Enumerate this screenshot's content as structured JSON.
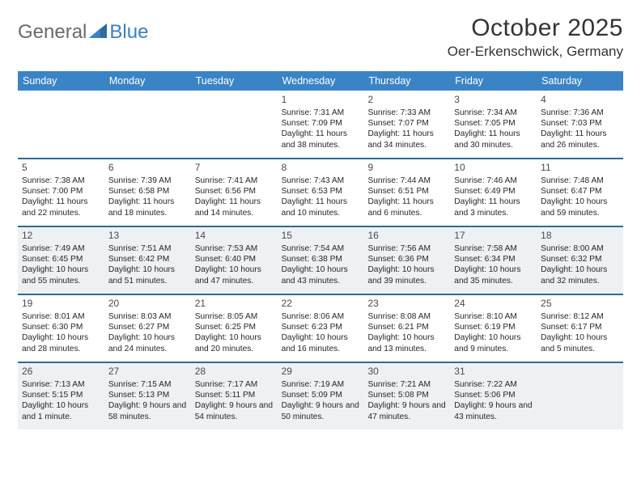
{
  "logo": {
    "part1": "General",
    "part2": "Blue"
  },
  "header": {
    "title": "October 2025",
    "subtitle": "Oer-Erkenschwick, Germany"
  },
  "colors": {
    "header_bg": "#3a84c6",
    "header_text": "#ffffff",
    "divider": "#2f6aa0",
    "gray_cell": "#eef1f4",
    "text": "#262626",
    "logo_gray": "#6a6a6a",
    "logo_blue": "#3a7fc4"
  },
  "dayNames": [
    "Sunday",
    "Monday",
    "Tuesday",
    "Wednesday",
    "Thursday",
    "Friday",
    "Saturday"
  ],
  "weeks": [
    {
      "shaded": false,
      "cells": [
        {
          "day": "",
          "sunrise": "",
          "sunset": "",
          "daylight": ""
        },
        {
          "day": "",
          "sunrise": "",
          "sunset": "",
          "daylight": ""
        },
        {
          "day": "",
          "sunrise": "",
          "sunset": "",
          "daylight": ""
        },
        {
          "day": "1",
          "sunrise": "Sunrise: 7:31 AM",
          "sunset": "Sunset: 7:09 PM",
          "daylight": "Daylight: 11 hours and 38 minutes."
        },
        {
          "day": "2",
          "sunrise": "Sunrise: 7:33 AM",
          "sunset": "Sunset: 7:07 PM",
          "daylight": "Daylight: 11 hours and 34 minutes."
        },
        {
          "day": "3",
          "sunrise": "Sunrise: 7:34 AM",
          "sunset": "Sunset: 7:05 PM",
          "daylight": "Daylight: 11 hours and 30 minutes."
        },
        {
          "day": "4",
          "sunrise": "Sunrise: 7:36 AM",
          "sunset": "Sunset: 7:03 PM",
          "daylight": "Daylight: 11 hours and 26 minutes."
        }
      ]
    },
    {
      "shaded": false,
      "cells": [
        {
          "day": "5",
          "sunrise": "Sunrise: 7:38 AM",
          "sunset": "Sunset: 7:00 PM",
          "daylight": "Daylight: 11 hours and 22 minutes."
        },
        {
          "day": "6",
          "sunrise": "Sunrise: 7:39 AM",
          "sunset": "Sunset: 6:58 PM",
          "daylight": "Daylight: 11 hours and 18 minutes."
        },
        {
          "day": "7",
          "sunrise": "Sunrise: 7:41 AM",
          "sunset": "Sunset: 6:56 PM",
          "daylight": "Daylight: 11 hours and 14 minutes."
        },
        {
          "day": "8",
          "sunrise": "Sunrise: 7:43 AM",
          "sunset": "Sunset: 6:53 PM",
          "daylight": "Daylight: 11 hours and 10 minutes."
        },
        {
          "day": "9",
          "sunrise": "Sunrise: 7:44 AM",
          "sunset": "Sunset: 6:51 PM",
          "daylight": "Daylight: 11 hours and 6 minutes."
        },
        {
          "day": "10",
          "sunrise": "Sunrise: 7:46 AM",
          "sunset": "Sunset: 6:49 PM",
          "daylight": "Daylight: 11 hours and 3 minutes."
        },
        {
          "day": "11",
          "sunrise": "Sunrise: 7:48 AM",
          "sunset": "Sunset: 6:47 PM",
          "daylight": "Daylight: 10 hours and 59 minutes."
        }
      ]
    },
    {
      "shaded": true,
      "cells": [
        {
          "day": "12",
          "sunrise": "Sunrise: 7:49 AM",
          "sunset": "Sunset: 6:45 PM",
          "daylight": "Daylight: 10 hours and 55 minutes."
        },
        {
          "day": "13",
          "sunrise": "Sunrise: 7:51 AM",
          "sunset": "Sunset: 6:42 PM",
          "daylight": "Daylight: 10 hours and 51 minutes."
        },
        {
          "day": "14",
          "sunrise": "Sunrise: 7:53 AM",
          "sunset": "Sunset: 6:40 PM",
          "daylight": "Daylight: 10 hours and 47 minutes."
        },
        {
          "day": "15",
          "sunrise": "Sunrise: 7:54 AM",
          "sunset": "Sunset: 6:38 PM",
          "daylight": "Daylight: 10 hours and 43 minutes."
        },
        {
          "day": "16",
          "sunrise": "Sunrise: 7:56 AM",
          "sunset": "Sunset: 6:36 PM",
          "daylight": "Daylight: 10 hours and 39 minutes."
        },
        {
          "day": "17",
          "sunrise": "Sunrise: 7:58 AM",
          "sunset": "Sunset: 6:34 PM",
          "daylight": "Daylight: 10 hours and 35 minutes."
        },
        {
          "day": "18",
          "sunrise": "Sunrise: 8:00 AM",
          "sunset": "Sunset: 6:32 PM",
          "daylight": "Daylight: 10 hours and 32 minutes."
        }
      ]
    },
    {
      "shaded": false,
      "cells": [
        {
          "day": "19",
          "sunrise": "Sunrise: 8:01 AM",
          "sunset": "Sunset: 6:30 PM",
          "daylight": "Daylight: 10 hours and 28 minutes."
        },
        {
          "day": "20",
          "sunrise": "Sunrise: 8:03 AM",
          "sunset": "Sunset: 6:27 PM",
          "daylight": "Daylight: 10 hours and 24 minutes."
        },
        {
          "day": "21",
          "sunrise": "Sunrise: 8:05 AM",
          "sunset": "Sunset: 6:25 PM",
          "daylight": "Daylight: 10 hours and 20 minutes."
        },
        {
          "day": "22",
          "sunrise": "Sunrise: 8:06 AM",
          "sunset": "Sunset: 6:23 PM",
          "daylight": "Daylight: 10 hours and 16 minutes."
        },
        {
          "day": "23",
          "sunrise": "Sunrise: 8:08 AM",
          "sunset": "Sunset: 6:21 PM",
          "daylight": "Daylight: 10 hours and 13 minutes."
        },
        {
          "day": "24",
          "sunrise": "Sunrise: 8:10 AM",
          "sunset": "Sunset: 6:19 PM",
          "daylight": "Daylight: 10 hours and 9 minutes."
        },
        {
          "day": "25",
          "sunrise": "Sunrise: 8:12 AM",
          "sunset": "Sunset: 6:17 PM",
          "daylight": "Daylight: 10 hours and 5 minutes."
        }
      ]
    },
    {
      "shaded": true,
      "cells": [
        {
          "day": "26",
          "sunrise": "Sunrise: 7:13 AM",
          "sunset": "Sunset: 5:15 PM",
          "daylight": "Daylight: 10 hours and 1 minute."
        },
        {
          "day": "27",
          "sunrise": "Sunrise: 7:15 AM",
          "sunset": "Sunset: 5:13 PM",
          "daylight": "Daylight: 9 hours and 58 minutes."
        },
        {
          "day": "28",
          "sunrise": "Sunrise: 7:17 AM",
          "sunset": "Sunset: 5:11 PM",
          "daylight": "Daylight: 9 hours and 54 minutes."
        },
        {
          "day": "29",
          "sunrise": "Sunrise: 7:19 AM",
          "sunset": "Sunset: 5:09 PM",
          "daylight": "Daylight: 9 hours and 50 minutes."
        },
        {
          "day": "30",
          "sunrise": "Sunrise: 7:21 AM",
          "sunset": "Sunset: 5:08 PM",
          "daylight": "Daylight: 9 hours and 47 minutes."
        },
        {
          "day": "31",
          "sunrise": "Sunrise: 7:22 AM",
          "sunset": "Sunset: 5:06 PM",
          "daylight": "Daylight: 9 hours and 43 minutes."
        },
        {
          "day": "",
          "sunrise": "",
          "sunset": "",
          "daylight": ""
        }
      ]
    }
  ]
}
